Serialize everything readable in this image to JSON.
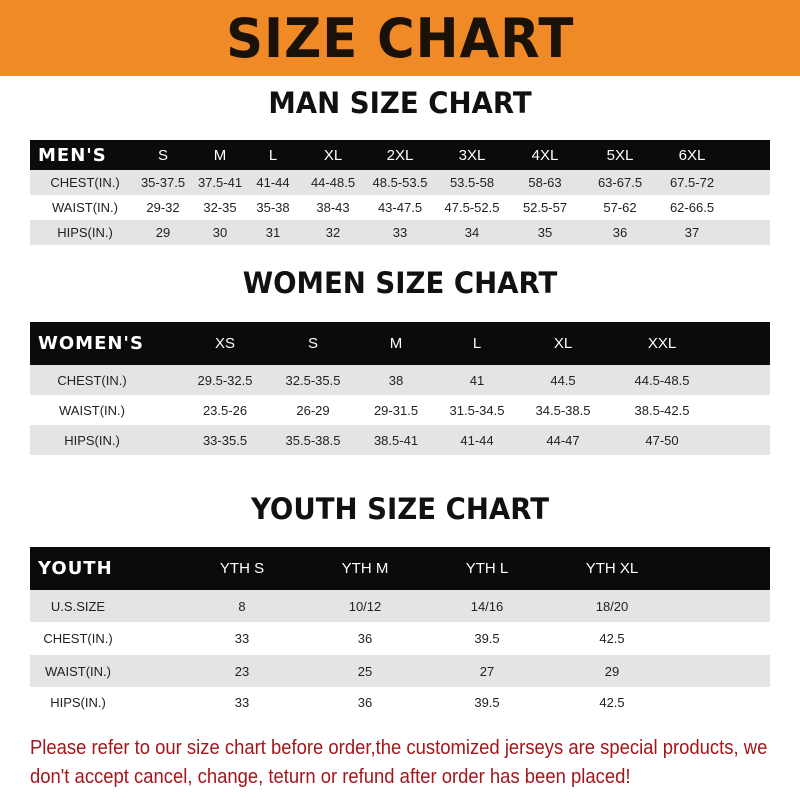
{
  "banner": "SIZE CHART",
  "men": {
    "title": "MAN SIZE CHART",
    "header": [
      "MEN'S",
      "S",
      "M",
      "L",
      "XL",
      "2XL",
      "3XL",
      "4XL",
      "5XL",
      "6XL"
    ],
    "rows": [
      [
        "CHEST(IN.)",
        "35-37.5",
        "37.5-41",
        "41-44",
        "44-48.5",
        "48.5-53.5",
        "53.5-58",
        "58-63",
        "63-67.5",
        "67.5-72"
      ],
      [
        "WAIST(IN.)",
        "29-32",
        "32-35",
        "35-38",
        "38-43",
        "43-47.5",
        "47.5-52.5",
        "52.5-57",
        "57-62",
        "62-66.5"
      ],
      [
        "HIPS(IN.)",
        "29",
        "30",
        "31",
        "32",
        "33",
        "34",
        "35",
        "36",
        "37"
      ]
    ]
  },
  "women": {
    "title": "WOMEN SIZE CHART",
    "header": [
      "WOMEN'S",
      "XS",
      "S",
      "M",
      "L",
      "XL",
      "XXL"
    ],
    "rows": [
      [
        "CHEST(IN.)",
        "29.5-32.5",
        "32.5-35.5",
        "38",
        "41",
        "44.5",
        "44.5-48.5"
      ],
      [
        "WAIST(IN.)",
        "23.5-26",
        "26-29",
        "29-31.5",
        "31.5-34.5",
        "34.5-38.5",
        "38.5-42.5"
      ],
      [
        "HIPS(IN.)",
        "33-35.5",
        "35.5-38.5",
        "38.5-41",
        "41-44",
        "44-47",
        "47-50"
      ]
    ]
  },
  "youth": {
    "title": "YOUTH SIZE CHART",
    "header": [
      "YOUTH",
      "YTH S",
      "YTH M",
      "YTH L",
      "YTH XL"
    ],
    "rows": [
      [
        "U.S.SIZE",
        "8",
        "10/12",
        "14/16",
        "18/20"
      ],
      [
        "CHEST(IN.)",
        "33",
        "36",
        "39.5",
        "42.5"
      ],
      [
        "WAIST(IN.)",
        "23",
        "25",
        "27",
        "29"
      ],
      [
        "HIPS(IN.)",
        "33",
        "36",
        "39.5",
        "42.5"
      ]
    ]
  },
  "note": "Please refer to our size chart before order,the customized jerseys are special products, we don't accept cancel, change, teturn or refund after order has been placed!"
}
